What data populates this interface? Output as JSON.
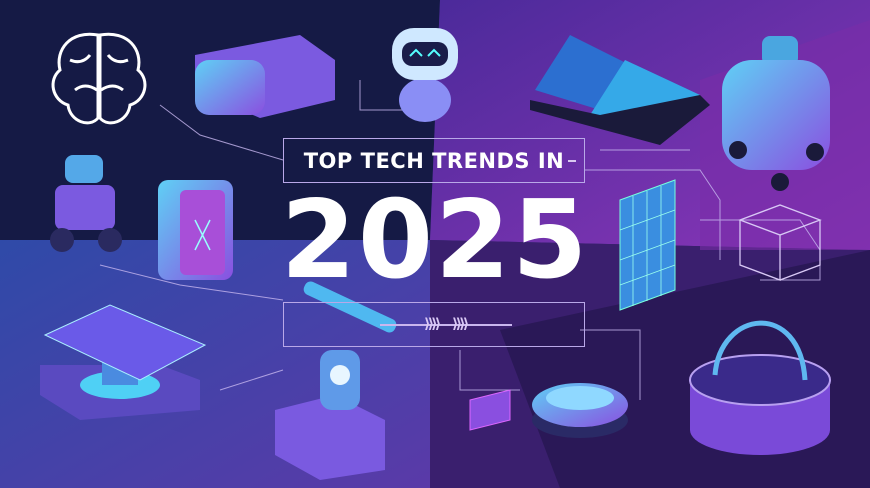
{
  "headline": {
    "title": "TOP TECH TRENDS IN",
    "year": "2025"
  },
  "colors": {
    "navy": "#151a45",
    "blue": "#2d3a8c",
    "purple": "#6b2a9e",
    "magenta": "#9b3fc0",
    "cyan": "#3fc6f0"
  },
  "icons": [
    "brain-icon",
    "vr-headset-icon",
    "robot-head-icon",
    "solar-panels-icon",
    "humanoid-robot-icon",
    "wheeled-robot-icon",
    "battery-icon",
    "solar-panel-vertical-icon",
    "circuit-cube-icon",
    "solar-station-icon",
    "robotic-arm-icon",
    "drone-icon",
    "chip-icon",
    "portal-ring-icon"
  ]
}
